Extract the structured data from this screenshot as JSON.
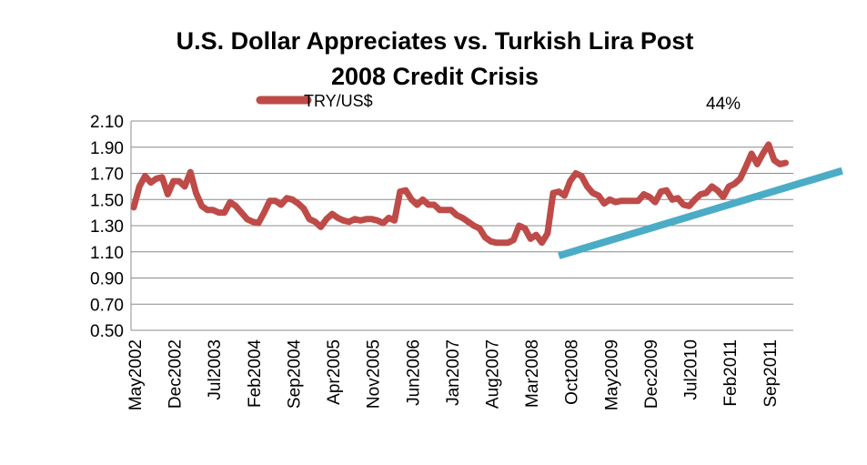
{
  "chart_data": {
    "type": "line",
    "title_lines": [
      "U.S. Dollar Appreciates vs. Turkish Lira Post",
      "2008 Credit Crisis"
    ],
    "xlabel": "",
    "ylabel": "",
    "ylim": [
      0.5,
      2.1
    ],
    "yticks": [
      "2.10",
      "1.90",
      "1.70",
      "1.50",
      "1.30",
      "1.10",
      "0.90",
      "0.70",
      "0.50"
    ],
    "ytick_values": [
      2.1,
      1.9,
      1.7,
      1.5,
      1.3,
      1.1,
      0.9,
      0.7,
      0.5
    ],
    "xticks": [
      "May2002",
      "Dec2002",
      "Jul2003",
      "Feb2004",
      "Sep2004",
      "Apr2005",
      "Nov2005",
      "Jun2006",
      "Jan2007",
      "Aug2007",
      "Mar2008",
      "Oct2008",
      "May2009",
      "Dec2009",
      "Jul2010",
      "Feb2011",
      "Sep2011"
    ],
    "xtick_month_index": [
      0,
      7,
      14,
      21,
      28,
      35,
      42,
      49,
      56,
      63,
      70,
      77,
      84,
      91,
      98,
      105,
      112
    ],
    "grid": true,
    "legend": "top-left",
    "series": [
      {
        "name": "TRY/US$",
        "color": "#be4b48",
        "start_month": "May2002",
        "values": [
          1.44,
          1.6,
          1.68,
          1.63,
          1.66,
          1.67,
          1.54,
          1.64,
          1.64,
          1.6,
          1.71,
          1.55,
          1.45,
          1.42,
          1.42,
          1.4,
          1.4,
          1.48,
          1.45,
          1.4,
          1.35,
          1.33,
          1.32,
          1.4,
          1.49,
          1.49,
          1.46,
          1.51,
          1.5,
          1.47,
          1.43,
          1.35,
          1.33,
          1.29,
          1.35,
          1.39,
          1.36,
          1.34,
          1.33,
          1.35,
          1.34,
          1.35,
          1.35,
          1.34,
          1.32,
          1.36,
          1.34,
          1.56,
          1.57,
          1.5,
          1.46,
          1.5,
          1.46,
          1.46,
          1.42,
          1.42,
          1.42,
          1.38,
          1.36,
          1.33,
          1.3,
          1.28,
          1.21,
          1.18,
          1.17,
          1.17,
          1.17,
          1.19,
          1.3,
          1.28,
          1.2,
          1.23,
          1.17,
          1.24,
          1.55,
          1.56,
          1.53,
          1.64,
          1.7,
          1.68,
          1.6,
          1.55,
          1.53,
          1.47,
          1.5,
          1.48,
          1.49,
          1.49,
          1.49,
          1.49,
          1.54,
          1.52,
          1.48,
          1.56,
          1.57,
          1.5,
          1.51,
          1.46,
          1.45,
          1.5,
          1.54,
          1.55,
          1.6,
          1.57,
          1.52,
          1.6,
          1.62,
          1.66,
          1.75,
          1.85,
          1.77,
          1.85,
          1.92,
          1.8,
          1.77,
          1.78
        ]
      }
    ],
    "trendline": {
      "color": "#4bacc6",
      "from": {
        "x_month_index": 75,
        "y": 1.07
      },
      "to": {
        "x_month_index": 125,
        "y": 1.72
      }
    },
    "annotation": "44%"
  }
}
